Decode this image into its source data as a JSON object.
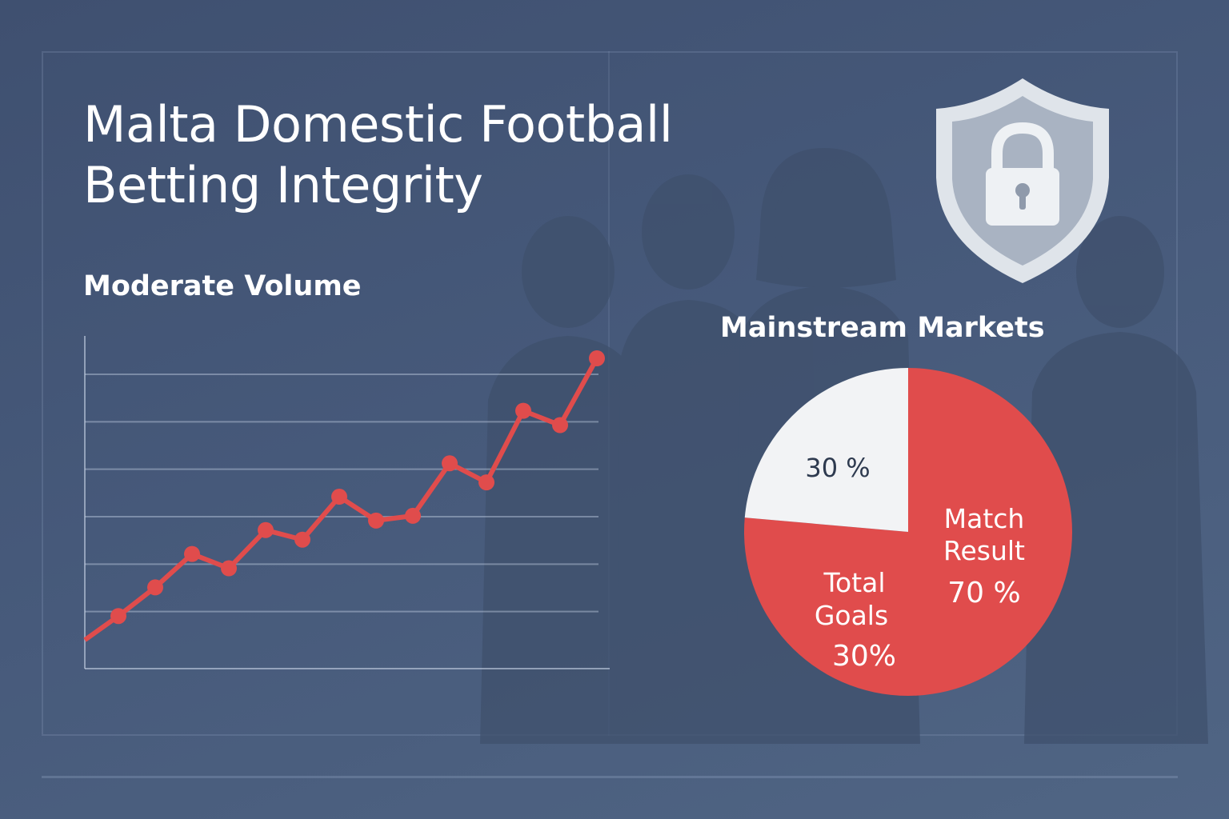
{
  "header": {
    "title": "Malta Domestic Football Betting Integrity"
  },
  "icons": {
    "shield": "shield-lock-icon",
    "people": "people-silhouette-icon"
  },
  "colors": {
    "accent_red": "#e04c4c",
    "light_slice": "#f2f3f5",
    "background": "#46597a"
  },
  "chart_data": [
    {
      "type": "line",
      "title": "Moderate Volume",
      "xlabel": "",
      "ylabel": "",
      "grid": true,
      "legend": "none",
      "ylim": [
        0,
        6
      ],
      "series": [
        {
          "values": [
            0.6,
            1.2,
            1.9,
            1.6,
            2.4,
            2.2,
            3.1,
            2.6,
            2.7,
            3.8,
            3.4,
            4.9,
            4.6,
            6.0
          ]
        }
      ]
    },
    {
      "type": "pie",
      "title": "Mainstream Markets",
      "slices": [
        {
          "label": "Match Result",
          "value_label": "70 %",
          "value": 70,
          "color": "#e04c4c"
        },
        {
          "label": "Total Goals",
          "value_label": "30%",
          "value": 30,
          "color": "#e04c4c"
        },
        {
          "label": "",
          "value_label": "30 %",
          "value": 30,
          "color": "#f2f3f5"
        }
      ]
    }
  ]
}
